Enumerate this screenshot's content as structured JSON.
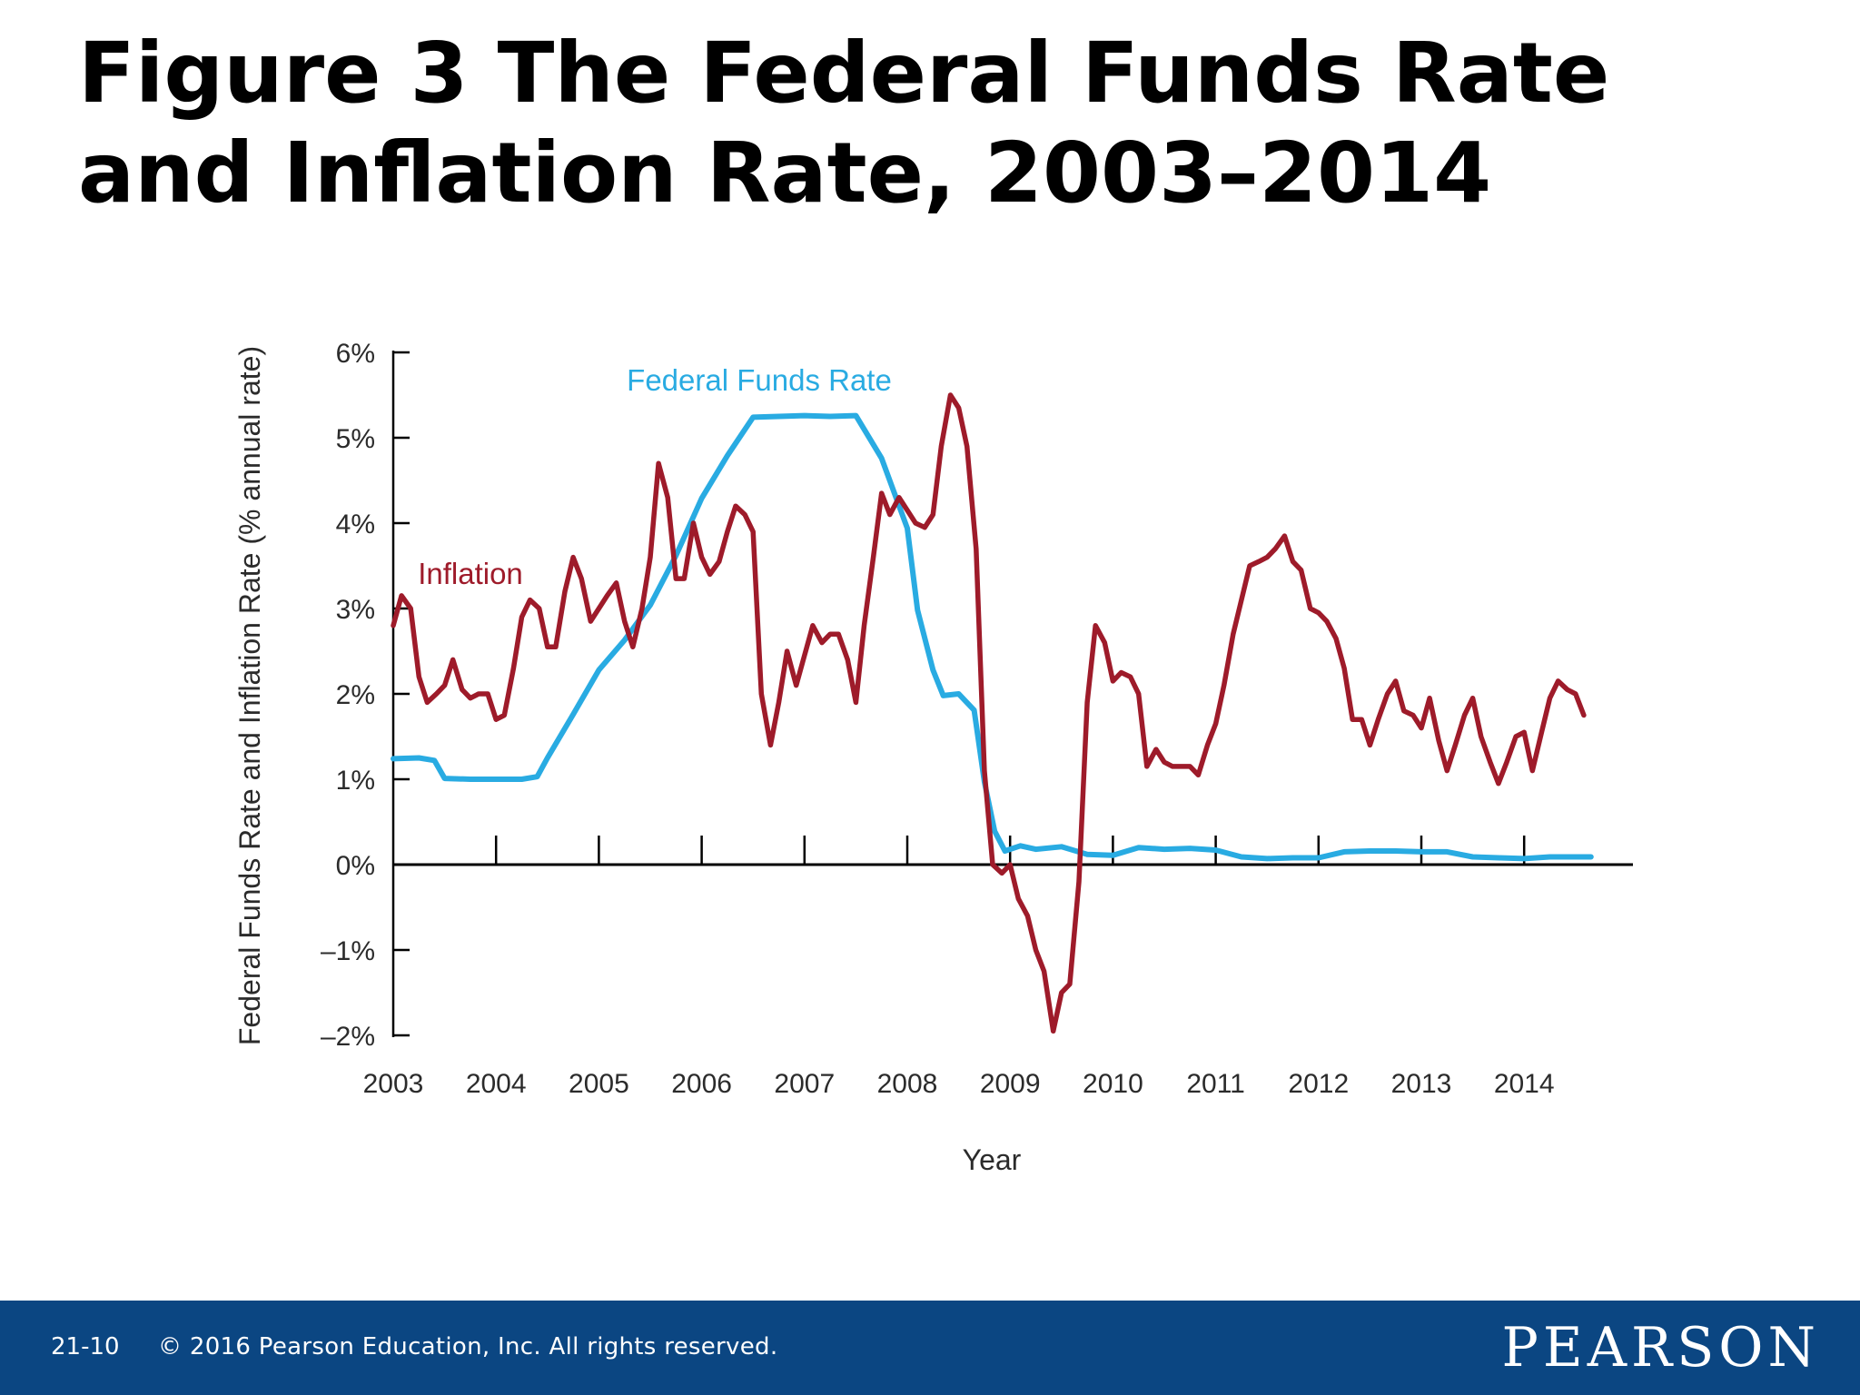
{
  "slide": {
    "title": "Figure 3 The Federal Funds Rate and Inflation Rate, 2003–2014",
    "slide_number": "21-10",
    "copyright": "© 2016 Pearson Education, Inc. All rights reserved.",
    "logo": "PEARSON"
  },
  "colors": {
    "footer_bg": "#0b4682",
    "federal_funds": "#29abe2",
    "inflation": "#9e1b2a"
  },
  "chart_data": {
    "type": "line",
    "title": "",
    "xlabel": "Year",
    "ylabel": "Federal Funds Rate and Inflation Rate (% annual rate)",
    "xlim": [
      2003,
      2015
    ],
    "ylim": [
      -2,
      6
    ],
    "x_ticks": [
      2003,
      2004,
      2005,
      2006,
      2007,
      2008,
      2009,
      2010,
      2011,
      2012,
      2013,
      2014
    ],
    "x_tick_labels": [
      "2003",
      "2004",
      "2005",
      "2006",
      "2007",
      "2008",
      "2009",
      "2010",
      "2011",
      "2012",
      "2013",
      "2014"
    ],
    "y_ticks": [
      6,
      5,
      4,
      3,
      2,
      1,
      0,
      -1,
      -2
    ],
    "y_tick_labels": [
      "6%",
      "5%",
      "4%",
      "3%",
      "2%",
      "1%",
      "0%",
      "–1%",
      "–2%"
    ],
    "grid": false,
    "legend": "inline labels",
    "series": [
      {
        "name": "Federal Funds Rate",
        "color": "#29abe2",
        "points": [
          [
            2003.0,
            1.24
          ],
          [
            2003.25,
            1.25
          ],
          [
            2003.4,
            1.22
          ],
          [
            2003.5,
            1.01
          ],
          [
            2003.75,
            1.0
          ],
          [
            2004.0,
            1.0
          ],
          [
            2004.25,
            1.0
          ],
          [
            2004.4,
            1.03
          ],
          [
            2004.5,
            1.25
          ],
          [
            2004.75,
            1.76
          ],
          [
            2005.0,
            2.28
          ],
          [
            2005.25,
            2.63
          ],
          [
            2005.5,
            3.04
          ],
          [
            2005.75,
            3.62
          ],
          [
            2006.0,
            4.29
          ],
          [
            2006.25,
            4.79
          ],
          [
            2006.5,
            5.24
          ],
          [
            2006.75,
            5.25
          ],
          [
            2007.0,
            5.26
          ],
          [
            2007.25,
            5.25
          ],
          [
            2007.5,
            5.26
          ],
          [
            2007.75,
            4.76
          ],
          [
            2008.0,
            3.94
          ],
          [
            2008.1,
            2.98
          ],
          [
            2008.25,
            2.28
          ],
          [
            2008.35,
            1.98
          ],
          [
            2008.5,
            2.0
          ],
          [
            2008.65,
            1.81
          ],
          [
            2008.75,
            0.97
          ],
          [
            2008.85,
            0.39
          ],
          [
            2008.95,
            0.16
          ],
          [
            2009.1,
            0.22
          ],
          [
            2009.25,
            0.18
          ],
          [
            2009.5,
            0.21
          ],
          [
            2009.75,
            0.12
          ],
          [
            2010.0,
            0.11
          ],
          [
            2010.25,
            0.2
          ],
          [
            2010.5,
            0.18
          ],
          [
            2010.75,
            0.19
          ],
          [
            2011.0,
            0.17
          ],
          [
            2011.25,
            0.09
          ],
          [
            2011.5,
            0.07
          ],
          [
            2011.75,
            0.08
          ],
          [
            2012.0,
            0.08
          ],
          [
            2012.25,
            0.15
          ],
          [
            2012.5,
            0.16
          ],
          [
            2012.75,
            0.16
          ],
          [
            2013.0,
            0.15
          ],
          [
            2013.25,
            0.15
          ],
          [
            2013.5,
            0.09
          ],
          [
            2013.75,
            0.08
          ],
          [
            2014.0,
            0.07
          ],
          [
            2014.25,
            0.09
          ],
          [
            2014.5,
            0.09
          ],
          [
            2014.65,
            0.09
          ]
        ]
      },
      {
        "name": "Inflation",
        "color": "#9e1b2a",
        "points": [
          [
            2003.0,
            2.8
          ],
          [
            2003.08,
            3.15
          ],
          [
            2003.17,
            3.0
          ],
          [
            2003.25,
            2.2
          ],
          [
            2003.33,
            1.9
          ],
          [
            2003.42,
            2.0
          ],
          [
            2003.5,
            2.1
          ],
          [
            2003.58,
            2.4
          ],
          [
            2003.67,
            2.05
          ],
          [
            2003.75,
            1.95
          ],
          [
            2003.83,
            2.0
          ],
          [
            2003.92,
            2.0
          ],
          [
            2004.0,
            1.7
          ],
          [
            2004.08,
            1.75
          ],
          [
            2004.17,
            2.3
          ],
          [
            2004.25,
            2.9
          ],
          [
            2004.33,
            3.1
          ],
          [
            2004.42,
            3.0
          ],
          [
            2004.5,
            2.55
          ],
          [
            2004.58,
            2.55
          ],
          [
            2004.67,
            3.2
          ],
          [
            2004.75,
            3.6
          ],
          [
            2004.83,
            3.35
          ],
          [
            2004.92,
            2.85
          ],
          [
            2005.0,
            3.0
          ],
          [
            2005.08,
            3.15
          ],
          [
            2005.17,
            3.3
          ],
          [
            2005.25,
            2.85
          ],
          [
            2005.33,
            2.55
          ],
          [
            2005.42,
            3.0
          ],
          [
            2005.5,
            3.6
          ],
          [
            2005.58,
            4.7
          ],
          [
            2005.67,
            4.3
          ],
          [
            2005.75,
            3.35
          ],
          [
            2005.83,
            3.35
          ],
          [
            2005.92,
            4.0
          ],
          [
            2006.0,
            3.6
          ],
          [
            2006.08,
            3.4
          ],
          [
            2006.17,
            3.55
          ],
          [
            2006.25,
            3.9
          ],
          [
            2006.33,
            4.2
          ],
          [
            2006.42,
            4.1
          ],
          [
            2006.5,
            3.9
          ],
          [
            2006.58,
            2.0
          ],
          [
            2006.67,
            1.4
          ],
          [
            2006.75,
            1.9
          ],
          [
            2006.83,
            2.5
          ],
          [
            2006.92,
            2.1
          ],
          [
            2007.0,
            2.45
          ],
          [
            2007.08,
            2.8
          ],
          [
            2007.17,
            2.6
          ],
          [
            2007.25,
            2.7
          ],
          [
            2007.33,
            2.7
          ],
          [
            2007.42,
            2.4
          ],
          [
            2007.5,
            1.9
          ],
          [
            2007.58,
            2.8
          ],
          [
            2007.67,
            3.6
          ],
          [
            2007.75,
            4.35
          ],
          [
            2007.83,
            4.1
          ],
          [
            2007.92,
            4.3
          ],
          [
            2008.0,
            4.15
          ],
          [
            2008.08,
            4.0
          ],
          [
            2008.17,
            3.95
          ],
          [
            2008.25,
            4.1
          ],
          [
            2008.33,
            4.9
          ],
          [
            2008.42,
            5.5
          ],
          [
            2008.5,
            5.35
          ],
          [
            2008.58,
            4.9
          ],
          [
            2008.67,
            3.7
          ],
          [
            2008.75,
            1.1
          ],
          [
            2008.83,
            0.0
          ],
          [
            2008.92,
            -0.1
          ],
          [
            2009.0,
            0.0
          ],
          [
            2009.08,
            -0.4
          ],
          [
            2009.17,
            -0.6
          ],
          [
            2009.25,
            -1.0
          ],
          [
            2009.33,
            -1.25
          ],
          [
            2009.42,
            -1.95
          ],
          [
            2009.5,
            -1.5
          ],
          [
            2009.58,
            -1.4
          ],
          [
            2009.67,
            -0.2
          ],
          [
            2009.75,
            1.9
          ],
          [
            2009.83,
            2.8
          ],
          [
            2009.92,
            2.6
          ],
          [
            2010.0,
            2.15
          ],
          [
            2010.08,
            2.25
          ],
          [
            2010.17,
            2.2
          ],
          [
            2010.25,
            2.0
          ],
          [
            2010.33,
            1.15
          ],
          [
            2010.42,
            1.35
          ],
          [
            2010.5,
            1.2
          ],
          [
            2010.58,
            1.15
          ],
          [
            2010.67,
            1.15
          ],
          [
            2010.75,
            1.15
          ],
          [
            2010.83,
            1.05
          ],
          [
            2010.92,
            1.4
          ],
          [
            2011.0,
            1.65
          ],
          [
            2011.08,
            2.1
          ],
          [
            2011.17,
            2.7
          ],
          [
            2011.25,
            3.1
          ],
          [
            2011.33,
            3.5
          ],
          [
            2011.42,
            3.55
          ],
          [
            2011.5,
            3.6
          ],
          [
            2011.58,
            3.7
          ],
          [
            2011.67,
            3.85
          ],
          [
            2011.75,
            3.55
          ],
          [
            2011.83,
            3.45
          ],
          [
            2011.92,
            3.0
          ],
          [
            2012.0,
            2.95
          ],
          [
            2012.08,
            2.85
          ],
          [
            2012.17,
            2.65
          ],
          [
            2012.25,
            2.3
          ],
          [
            2012.33,
            1.7
          ],
          [
            2012.42,
            1.7
          ],
          [
            2012.5,
            1.4
          ],
          [
            2012.58,
            1.7
          ],
          [
            2012.67,
            2.0
          ],
          [
            2012.75,
            2.15
          ],
          [
            2012.83,
            1.8
          ],
          [
            2012.92,
            1.75
          ],
          [
            2013.0,
            1.6
          ],
          [
            2013.08,
            1.95
          ],
          [
            2013.17,
            1.45
          ],
          [
            2013.25,
            1.1
          ],
          [
            2013.33,
            1.4
          ],
          [
            2013.42,
            1.75
          ],
          [
            2013.5,
            1.95
          ],
          [
            2013.58,
            1.5
          ],
          [
            2013.67,
            1.2
          ],
          [
            2013.75,
            0.95
          ],
          [
            2013.83,
            1.2
          ],
          [
            2013.92,
            1.5
          ],
          [
            2014.0,
            1.55
          ],
          [
            2014.08,
            1.1
          ],
          [
            2014.17,
            1.55
          ],
          [
            2014.25,
            1.95
          ],
          [
            2014.33,
            2.15
          ],
          [
            2014.42,
            2.05
          ],
          [
            2014.5,
            2.0
          ],
          [
            2014.58,
            1.75
          ]
        ]
      }
    ]
  }
}
